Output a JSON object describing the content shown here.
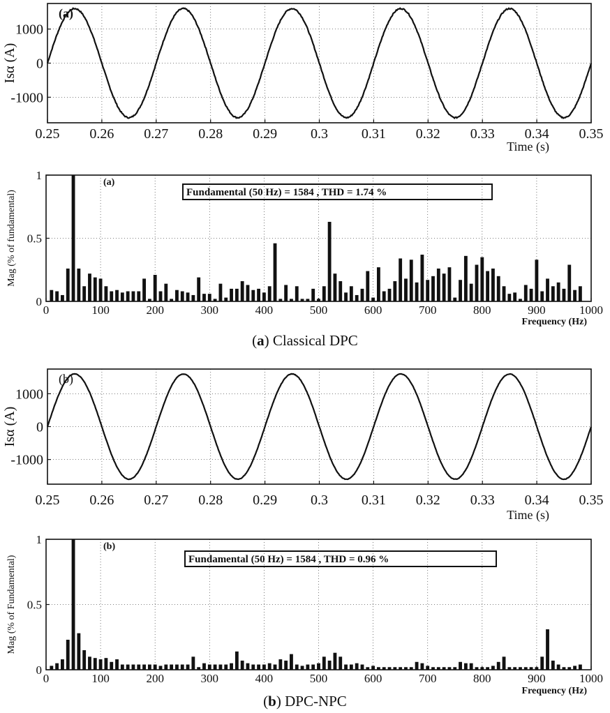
{
  "captions": [
    {
      "letter": "a",
      "text": ") Classical DPC"
    },
    {
      "letter": "b",
      "text": ") DPC-NPC"
    }
  ],
  "chart_data": [
    {
      "type": "line",
      "panel_label": "(a)",
      "xlabel": "Time (s)",
      "ylabel": "Isα (A)",
      "xlim": [
        0.25,
        0.35
      ],
      "ylim": [
        -1750,
        1750
      ],
      "xticks": [
        "0.25",
        "0.26",
        "0.27",
        "0.28",
        "0.29",
        "0.3",
        "0.31",
        "0.32",
        "0.33",
        "0.34",
        "0.35"
      ],
      "yticks": [
        "1000",
        "0",
        "-1000"
      ],
      "series": [
        {
          "amplitude": 1600,
          "frequency_hz": 50,
          "phase_deg": 180,
          "ripple": 35
        }
      ]
    },
    {
      "type": "bar",
      "panel_label": "(a)",
      "annotation": "Fundamental (50 Hz) = 1584 , THD = 1.74 %",
      "xlabel": "Frequency (Hz)",
      "ylabel": "Mag (% of fundamental)",
      "xlim": [
        0,
        1000
      ],
      "ylim": [
        0,
        1
      ],
      "xticks": [
        "0",
        "100",
        "200",
        "300",
        "400",
        "500",
        "600",
        "700",
        "800",
        "900",
        "1000"
      ],
      "yticks": [
        "1",
        "0.5",
        "0"
      ],
      "bar_spacing_hz": 10,
      "x_start_hz": 10,
      "values": [
        0.09,
        0.08,
        0.05,
        0.26,
        1.0,
        0.26,
        0.12,
        0.22,
        0.19,
        0.18,
        0.12,
        0.08,
        0.09,
        0.07,
        0.08,
        0.08,
        0.08,
        0.18,
        0.02,
        0.21,
        0.08,
        0.14,
        0.02,
        0.09,
        0.08,
        0.07,
        0.05,
        0.19,
        0.06,
        0.06,
        0.02,
        0.14,
        0.03,
        0.1,
        0.1,
        0.16,
        0.13,
        0.09,
        0.1,
        0.07,
        0.12,
        0.46,
        0.02,
        0.13,
        0.02,
        0.12,
        0.02,
        0.02,
        0.1,
        0.02,
        0.12,
        0.63,
        0.22,
        0.16,
        0.07,
        0.12,
        0.05,
        0.1,
        0.24,
        0.03,
        0.27,
        0.08,
        0.1,
        0.16,
        0.34,
        0.18,
        0.33,
        0.15,
        0.37,
        0.17,
        0.2,
        0.26,
        0.22,
        0.27,
        0.03,
        0.17,
        0.36,
        0.14,
        0.29,
        0.35,
        0.24,
        0.26,
        0.2,
        0.12,
        0.06,
        0.07,
        0.02,
        0.13,
        0.1,
        0.33,
        0.08,
        0.18,
        0.12,
        0.15,
        0.1,
        0.29,
        0.09,
        0.12
      ]
    },
    {
      "type": "line",
      "panel_label": "(b)",
      "xlabel": "Time (s)",
      "ylabel": "Isα (A)",
      "xlim": [
        0.25,
        0.35
      ],
      "ylim": [
        -1750,
        1750
      ],
      "xticks": [
        "0.25",
        "0.26",
        "0.27",
        "0.28",
        "0.29",
        "0.3",
        "0.31",
        "0.32",
        "0.33",
        "0.34",
        "0.35"
      ],
      "yticks": [
        "1000",
        "0",
        "-1000"
      ],
      "series": [
        {
          "amplitude": 1600,
          "frequency_hz": 50,
          "phase_deg": 180,
          "ripple": 15
        }
      ]
    },
    {
      "type": "bar",
      "panel_label": "(b)",
      "annotation": "Fundamental (50 Hz) = 1584 , THD = 0.96 %",
      "xlabel": "Frequency (Hz)",
      "ylabel": "Mag (% of Fundamental)",
      "xlim": [
        0,
        1000
      ],
      "ylim": [
        0,
        1
      ],
      "xticks": [
        "0",
        "100",
        "200",
        "300",
        "400",
        "500",
        "600",
        "700",
        "800",
        "900",
        "1000"
      ],
      "yticks": [
        "1",
        "0.5",
        "0"
      ],
      "bar_spacing_hz": 10,
      "x_start_hz": 10,
      "values": [
        0.03,
        0.05,
        0.08,
        0.23,
        1.0,
        0.28,
        0.15,
        0.1,
        0.09,
        0.08,
        0.09,
        0.06,
        0.08,
        0.04,
        0.04,
        0.04,
        0.04,
        0.04,
        0.04,
        0.04,
        0.03,
        0.04,
        0.04,
        0.04,
        0.04,
        0.04,
        0.1,
        0.02,
        0.05,
        0.04,
        0.04,
        0.04,
        0.04,
        0.05,
        0.14,
        0.07,
        0.05,
        0.04,
        0.04,
        0.04,
        0.05,
        0.04,
        0.08,
        0.07,
        0.12,
        0.04,
        0.03,
        0.04,
        0.04,
        0.05,
        0.1,
        0.07,
        0.13,
        0.1,
        0.04,
        0.04,
        0.05,
        0.04,
        0.02,
        0.03,
        0.02,
        0.02,
        0.02,
        0.02,
        0.02,
        0.02,
        0.02,
        0.06,
        0.05,
        0.03,
        0.02,
        0.02,
        0.02,
        0.02,
        0.02,
        0.06,
        0.05,
        0.05,
        0.02,
        0.02,
        0.02,
        0.03,
        0.06,
        0.1,
        0.02,
        0.02,
        0.02,
        0.02,
        0.02,
        0.02,
        0.1,
        0.31,
        0.07,
        0.04,
        0.02,
        0.02,
        0.03,
        0.04
      ]
    }
  ]
}
